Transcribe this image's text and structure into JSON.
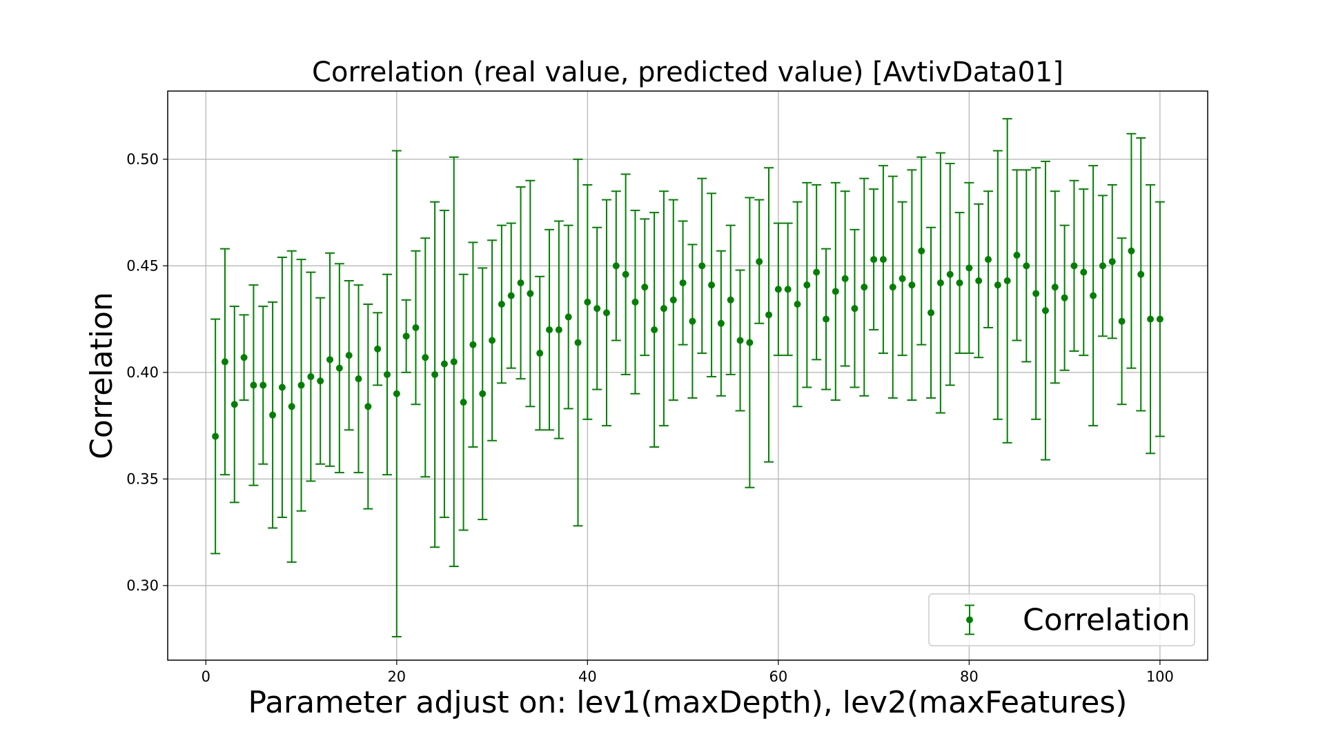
{
  "chart_data": {
    "type": "scatter",
    "style": "errorbar",
    "title": "Correlation (real value, predicted value)  [AvtivData01]",
    "xlabel": "Parameter adjust on: lev1(maxDepth), lev2(maxFeatures)",
    "ylabel": "Correlation",
    "xlim": [
      -4,
      105
    ],
    "ylim": [
      0.265,
      0.532
    ],
    "xticks": [
      0,
      20,
      40,
      60,
      80,
      100
    ],
    "yticks": [
      0.3,
      0.35,
      0.4,
      0.45,
      0.5
    ],
    "xtick_labels": [
      "0",
      "20",
      "40",
      "60",
      "80",
      "100"
    ],
    "ytick_labels": [
      "0.30",
      "0.35",
      "0.40",
      "0.45",
      "0.50"
    ],
    "grid": true,
    "legend_position": "lower-right",
    "color": "#008000",
    "series": [
      {
        "name": "Correlation",
        "x": [
          1,
          2,
          3,
          4,
          5,
          6,
          7,
          8,
          9,
          10,
          11,
          12,
          13,
          14,
          15,
          16,
          17,
          18,
          19,
          20,
          21,
          22,
          23,
          24,
          25,
          26,
          27,
          28,
          29,
          30,
          31,
          32,
          33,
          34,
          35,
          36,
          37,
          38,
          39,
          40,
          41,
          42,
          43,
          44,
          45,
          46,
          47,
          48,
          49,
          50,
          51,
          52,
          53,
          54,
          55,
          56,
          57,
          58,
          59,
          60,
          61,
          62,
          63,
          64,
          65,
          66,
          67,
          68,
          69,
          70,
          71,
          72,
          73,
          74,
          75,
          76,
          77,
          78,
          79,
          80,
          81,
          82,
          83,
          84,
          85,
          86,
          87,
          88,
          89,
          90,
          91,
          92,
          93,
          94,
          95,
          96,
          97,
          98,
          99,
          100
        ],
        "y": [
          0.37,
          0.405,
          0.385,
          0.407,
          0.394,
          0.394,
          0.38,
          0.393,
          0.384,
          0.394,
          0.398,
          0.396,
          0.406,
          0.402,
          0.408,
          0.397,
          0.384,
          0.411,
          0.399,
          0.39,
          0.417,
          0.421,
          0.407,
          0.399,
          0.404,
          0.405,
          0.386,
          0.413,
          0.39,
          0.415,
          0.432,
          0.436,
          0.442,
          0.437,
          0.409,
          0.42,
          0.42,
          0.426,
          0.414,
          0.433,
          0.43,
          0.428,
          0.45,
          0.446,
          0.433,
          0.44,
          0.42,
          0.43,
          0.434,
          0.442,
          0.424,
          0.45,
          0.441,
          0.423,
          0.434,
          0.415,
          0.414,
          0.452,
          0.427,
          0.439,
          0.439,
          0.432,
          0.441,
          0.447,
          0.425,
          0.438,
          0.444,
          0.43,
          0.44,
          0.453,
          0.453,
          0.44,
          0.444,
          0.441,
          0.457,
          0.428,
          0.442,
          0.446,
          0.442,
          0.449,
          0.443,
          0.453,
          0.441,
          0.443,
          0.455,
          0.45,
          0.437,
          0.429,
          0.44,
          0.435,
          0.45,
          0.447,
          0.436,
          0.45,
          0.452,
          0.424,
          0.457,
          0.446,
          0.425,
          0.425
        ],
        "err": [
          0.055,
          0.053,
          0.046,
          0.02,
          0.047,
          0.037,
          0.053,
          0.061,
          0.073,
          0.059,
          0.049,
          0.039,
          0.05,
          0.049,
          0.035,
          0.044,
          0.048,
          0.017,
          0.047,
          0.114,
          0.017,
          0.036,
          0.056,
          0.081,
          0.072,
          0.096,
          0.06,
          0.048,
          0.059,
          0.047,
          0.037,
          0.034,
          0.045,
          0.053,
          0.036,
          0.047,
          0.051,
          0.043,
          0.086,
          0.055,
          0.038,
          0.053,
          0.035,
          0.047,
          0.043,
          0.032,
          0.055,
          0.055,
          0.047,
          0.029,
          0.036,
          0.041,
          0.043,
          0.034,
          0.035,
          0.033,
          0.068,
          0.029,
          0.069,
          0.031,
          0.031,
          0.048,
          0.048,
          0.041,
          0.033,
          0.051,
          0.041,
          0.037,
          0.051,
          0.033,
          0.044,
          0.052,
          0.036,
          0.054,
          0.044,
          0.04,
          0.061,
          0.052,
          0.033,
          0.04,
          0.036,
          0.032,
          0.063,
          0.076,
          0.04,
          0.045,
          0.059,
          0.07,
          0.045,
          0.034,
          0.04,
          0.039,
          0.061,
          0.033,
          0.036,
          0.039,
          0.055,
          0.064,
          0.063,
          0.055
        ]
      }
    ]
  }
}
